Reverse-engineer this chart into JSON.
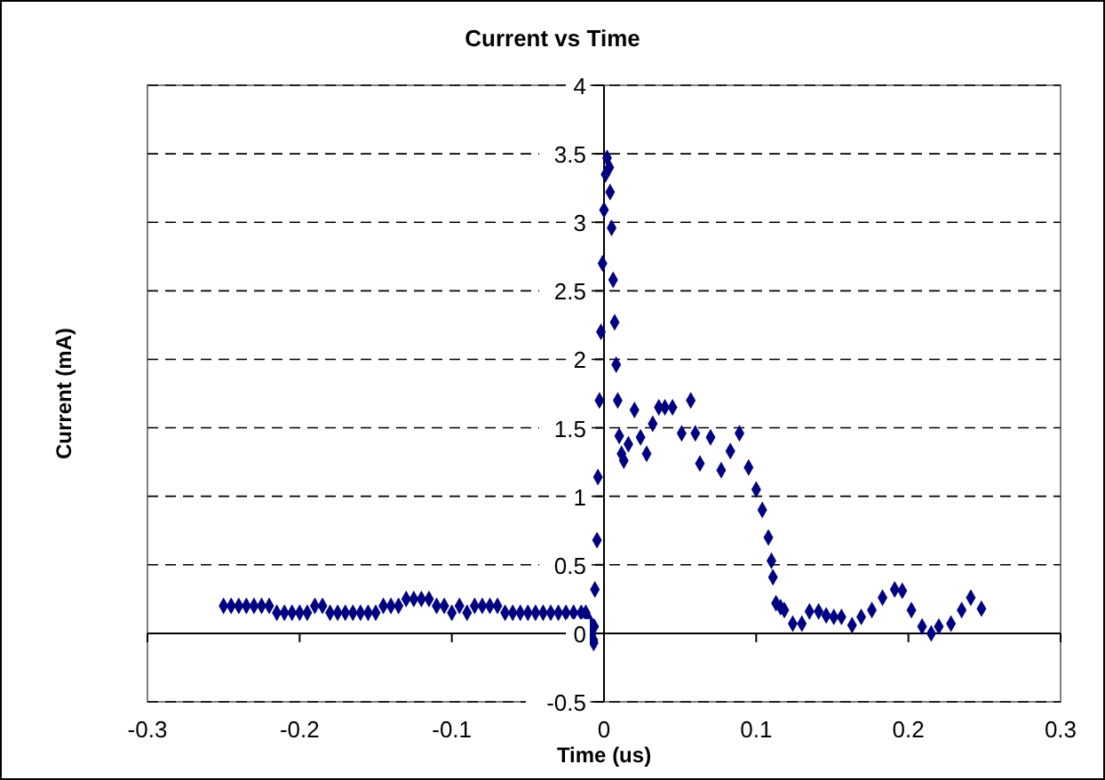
{
  "chart_data": {
    "type": "scatter",
    "title": "Current vs Time",
    "xlabel": "Time (us)",
    "ylabel": "Current (mA)",
    "xlim": [
      -0.3,
      0.3
    ],
    "xticks": [
      -0.3,
      -0.2,
      -0.1,
      0,
      0.1,
      0.2,
      0.3
    ],
    "ylim": [
      -0.5,
      4
    ],
    "yticks": [
      -0.5,
      0,
      0.5,
      1,
      1.5,
      2,
      2.5,
      3,
      3.5,
      4
    ],
    "grid": "y",
    "marker": "diamond",
    "series": [
      {
        "color": "#000080",
        "x": [
          -0.25,
          -0.245,
          -0.24,
          -0.235,
          -0.23,
          -0.225,
          -0.22,
          -0.215,
          -0.21,
          -0.205,
          -0.2,
          -0.195,
          -0.19,
          -0.185,
          -0.18,
          -0.175,
          -0.17,
          -0.165,
          -0.16,
          -0.155,
          -0.15,
          -0.145,
          -0.14,
          -0.135,
          -0.13,
          -0.125,
          -0.12,
          -0.115,
          -0.11,
          -0.105,
          -0.1,
          -0.095,
          -0.09,
          -0.085,
          -0.08,
          -0.075,
          -0.07,
          -0.065,
          -0.06,
          -0.055,
          -0.05,
          -0.045,
          -0.04,
          -0.035,
          -0.03,
          -0.025,
          -0.02,
          -0.015,
          -0.012,
          -0.01,
          -0.008,
          -0.007,
          -0.0068,
          -0.0065,
          -0.006,
          -0.0046,
          -0.004,
          -0.003,
          -0.002,
          -0.001,
          0,
          0.001,
          0.002,
          0.0035,
          0.004,
          0.005,
          0.006,
          0.007,
          0.008,
          0.009,
          0.01,
          0.0115,
          0.013,
          0.016,
          0.02,
          0.024,
          0.028,
          0.032,
          0.036,
          0.04,
          0.045,
          0.051,
          0.057,
          0.06,
          0.063,
          0.07,
          0.077,
          0.083,
          0.089,
          0.095,
          0.1,
          0.104,
          0.108,
          0.11,
          0.111,
          0.113,
          0.116,
          0.1185,
          0.124,
          0.13,
          0.135,
          0.141,
          0.146,
          0.151,
          0.156,
          0.163,
          0.169,
          0.176,
          0.183,
          0.191,
          0.196,
          0.202,
          0.209,
          0.215,
          0.22,
          0.228,
          0.235,
          0.241,
          0.248
        ],
        "values": [
          0.2,
          0.2,
          0.2,
          0.2,
          0.2,
          0.2,
          0.2,
          0.15,
          0.15,
          0.15,
          0.15,
          0.15,
          0.2,
          0.2,
          0.15,
          0.15,
          0.15,
          0.15,
          0.15,
          0.15,
          0.15,
          0.2,
          0.2,
          0.2,
          0.25,
          0.25,
          0.25,
          0.25,
          0.2,
          0.2,
          0.15,
          0.2,
          0.15,
          0.2,
          0.2,
          0.2,
          0.2,
          0.15,
          0.15,
          0.15,
          0.15,
          0.15,
          0.15,
          0.15,
          0.15,
          0.15,
          0.15,
          0.15,
          0.15,
          0.1,
          0,
          -0.05,
          -0.07,
          0.05,
          0.32,
          0.68,
          1.14,
          1.7,
          2.2,
          2.7,
          3.09,
          3.35,
          3.47,
          3.4,
          3.22,
          2.96,
          2.58,
          2.27,
          1.96,
          1.7,
          1.44,
          1.31,
          1.26,
          1.38,
          1.63,
          1.43,
          1.31,
          1.53,
          1.65,
          1.65,
          1.65,
          1.46,
          1.7,
          1.46,
          1.24,
          1.43,
          1.19,
          1.33,
          1.46,
          1.21,
          1.05,
          0.9,
          0.7,
          0.53,
          0.41,
          0.22,
          0.19,
          0.17,
          0.07,
          0.07,
          0.16,
          0.16,
          0.13,
          0.12,
          0.12,
          0.06,
          0.12,
          0.17,
          0.26,
          0.32,
          0.31,
          0.17,
          0.05,
          0,
          0.05,
          0.07,
          0.17,
          0.26,
          0.18
        ]
      }
    ]
  }
}
